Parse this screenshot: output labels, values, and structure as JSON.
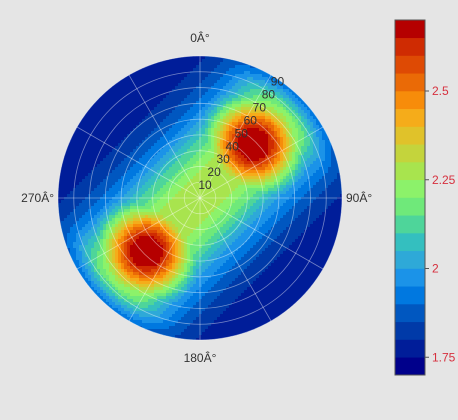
{
  "chart_data": {
    "type": "heatmap",
    "projection": "polar",
    "angular_ticks": [
      {
        "deg": 0,
        "label": "0Â°"
      },
      {
        "deg": 90,
        "label": "90Â°"
      },
      {
        "deg": 180,
        "label": "180Â°"
      },
      {
        "deg": 270,
        "label": "270Â°"
      }
    ],
    "angular_direction": "clockwise",
    "angular_zero": "top",
    "radial_range": [
      0,
      90
    ],
    "radial_ticks": [
      10,
      20,
      30,
      40,
      50,
      60,
      70,
      80,
      90
    ],
    "radial_tick_labels": [
      "10",
      "20",
      "30",
      "40",
      "50",
      "60",
      "70",
      "80",
      "90"
    ],
    "radial_tick_angle_deg": 35,
    "grid": true,
    "field": {
      "description_free": true,
      "baseline": 1.75,
      "peaks": [
        {
          "theta_deg": 45,
          "r": 48,
          "amplitude": 1.0,
          "spread": 22
        },
        {
          "theta_deg": 225,
          "r": 48,
          "amplitude": 1.0,
          "spread": 22
        }
      ],
      "saddle_level": 2.25,
      "max": 2.7
    },
    "colorbar": {
      "range": [
        1.7,
        2.7
      ],
      "levels": 20,
      "tick_values": [
        1.75,
        2,
        2.25,
        2.5
      ],
      "tick_labels": [
        "1.75",
        "2",
        "2.25",
        "2.5"
      ],
      "tick_color": "#d6303e",
      "colors": [
        "#00008b",
        "#001d99",
        "#003aa8",
        "#0057c0",
        "#0078e0",
        "#1b93e8",
        "#2ea9d8",
        "#34bfbf",
        "#4ed59a",
        "#6fe97a",
        "#8cf26a",
        "#a8e44e",
        "#c4d43c",
        "#e0c22a",
        "#f5ac1a",
        "#f78c0a",
        "#ea6a06",
        "#de4a04",
        "#cf2b02",
        "#b50000"
      ]
    }
  }
}
